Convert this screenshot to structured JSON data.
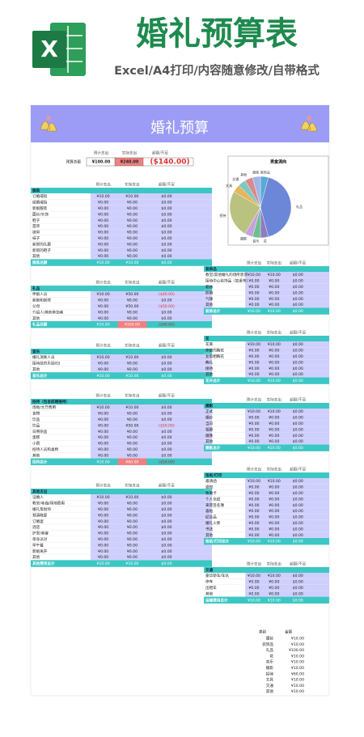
{
  "header": {
    "title": "婚礼预算表",
    "subtitle": "Excel/A4打印/内容随意修改/自带格式",
    "logo": "X"
  },
  "banner": "婚礼预算",
  "columns": [
    "预计支出",
    "实际支出",
    "超额/不足"
  ],
  "budget": {
    "label": "预算总额",
    "values": [
      "¥100.00",
      "¥240.00",
      "($140.00)"
    ]
  },
  "chart": {
    "title": "资金流向",
    "categories": [
      "装饰品",
      "礼品",
      "花",
      "音乐",
      "摄影",
      "招待",
      "文具",
      "交通",
      "其他",
      "服装"
    ],
    "values": [
      10,
      100,
      10,
      10,
      10,
      60,
      10,
      10,
      10,
      10
    ],
    "colors": [
      "#5aa9d6",
      "#6c86d8",
      "#8e7cc3",
      "#6fbf8e",
      "#c9a0dc",
      "#b9c27e",
      "#e6b55c",
      "#7fc8c0",
      "#d98b8b",
      "#9fb6e8"
    ]
  },
  "tables": [
    {
      "title": "服装",
      "rows": [
        [
          "订婚戒指",
          "¥10.00",
          "¥10.00",
          "$0.00"
        ],
        [
          "结婚戒指",
          "¥0.00",
          "¥0.00",
          "$0.00"
        ],
        [
          "新娘服装",
          "¥0.00",
          "¥0.00",
          "$0.00"
        ],
        [
          "面纱/头饰",
          "¥0.00",
          "¥0.00",
          "$0.00"
        ],
        [
          "鞋子",
          "¥0.00",
          "¥0.00",
          "$0.00"
        ],
        [
          "首饰",
          "¥0.00",
          "¥0.00",
          "$0.00"
        ],
        [
          "袜带",
          "¥0.00",
          "¥0.00",
          "$0.00"
        ],
        [
          "袜子",
          "¥0.00",
          "¥0.00",
          "$0.00"
        ],
        [
          "新郎的礼服",
          "¥0.00",
          "¥0.00",
          "$0.00"
        ],
        [
          "新郎的鞋子",
          "¥0.00",
          "¥0.00",
          "$0.00"
        ],
        [
          "其他",
          "¥0.00",
          "¥0.00",
          "$0.00"
        ]
      ],
      "total": [
        "服装总额",
        "¥10.00",
        "¥10.00",
        "$0.00"
      ]
    },
    {
      "title": "礼品",
      "rows": [
        [
          "伴娘人员",
          "¥10.00",
          "¥50.00",
          "($40.00)"
        ],
        [
          "新娘和新郎",
          "¥0.00",
          "¥0.00",
          "$0.00"
        ],
        [
          "父母",
          "¥0.00",
          "¥50.00",
          "($50.00)"
        ],
        [
          "介绍人/其他参加者",
          "¥0.00",
          "¥0.00",
          "$0.00"
        ],
        [
          "其他",
          "¥0.00",
          "¥0.00",
          "$0.00"
        ]
      ],
      "total": [
        "礼品总额",
        "¥10.00",
        "¥100.00",
        "($90.00)"
      ]
    },
    {
      "title": "音乐",
      "rows": [
        [
          "婚礼演奏人员",
          "¥10.00",
          "¥10.00",
          "$0.00"
        ],
        [
          "接待处的乐团/DJ",
          "¥0.00",
          "¥0.00",
          "$0.00"
        ],
        [
          "其他",
          "¥0.00",
          "¥0.00",
          "$0.00"
        ]
      ],
      "total": [
        "音乐总计",
        "¥10.00",
        "¥10.00",
        "$0.00"
      ]
    },
    {
      "title": "招待（包含前期接待）",
      "rows": [
        [
          "场地/大厅费用",
          "¥10.00",
          "¥10.00",
          "$0.00"
        ],
        [
          "食物",
          "¥0.00",
          "¥0.00",
          "$0.00"
        ],
        [
          "饮品",
          "¥0.00",
          "¥0.00",
          "$0.00"
        ],
        [
          "饮品",
          "¥0.00",
          "¥50.00",
          "($50.00)"
        ],
        [
          "日用杂品",
          "¥0.00",
          "¥0.00",
          "$0.00"
        ],
        [
          "蛋糕",
          "¥0.00",
          "¥0.00",
          "$0.00"
        ],
        [
          "小费",
          "¥0.00",
          "¥0.00",
          "$0.00"
        ],
        [
          "招待人员和桌椅",
          "¥0.00",
          "¥0.00",
          "$0.00"
        ],
        [
          "其他",
          "¥0.00",
          "¥0.00",
          "$0.00"
        ]
      ],
      "total": [
        "招待总计",
        "¥10.00",
        "¥60.00",
        "($50.00)"
      ]
    },
    {
      "title": "其他支出",
      "rows": [
        [
          "证婚人",
          "¥10.00",
          "¥10.00",
          "$0.00"
        ],
        [
          "教堂/寺庙/场地费用",
          "¥0.00",
          "¥0.00",
          "$0.00"
        ],
        [
          "婚礼策划师",
          "¥0.00",
          "¥0.00",
          "$0.00"
        ],
        [
          "预演晚宴",
          "¥0.00",
          "¥0.00",
          "$0.00"
        ],
        [
          "订婚宴",
          "¥0.00",
          "¥0.00",
          "$0.00"
        ],
        [
          "酒店",
          "¥0.00",
          "¥0.00",
          "$0.00"
        ],
        [
          "护发/美容",
          "¥0.00",
          "¥0.00",
          "$0.00"
        ],
        [
          "单身派对",
          "¥0.00",
          "¥0.00",
          "$0.00"
        ],
        [
          "早午餐",
          "¥0.00",
          "¥0.00",
          "$0.00"
        ],
        [
          "新娘离开",
          "¥0.00",
          "¥0.00",
          "$0.00"
        ],
        [
          "其他",
          "¥0.00",
          "¥0.00",
          "$0.00"
        ]
      ],
      "total": [
        "其他费用总计",
        "¥10.00",
        "¥10.00",
        "$0.00"
      ]
    },
    {
      "title": "装饰品",
      "rows": [
        [
          "教堂/其他婚礼的场所装饰",
          "¥10.00",
          "¥10.00",
          "$0.00"
        ],
        [
          "接待中心装饰品（如桌布）",
          "¥0.00",
          "¥0.00",
          "$0.00"
        ],
        [
          "蜡烛",
          "¥0.00",
          "¥0.00",
          "$0.00"
        ],
        [
          "照明",
          "¥0.00",
          "¥0.00",
          "$0.00"
        ],
        [
          "气球",
          "¥0.00",
          "¥0.00",
          "$0.00"
        ],
        [
          "其他",
          "¥0.00",
          "¥0.00",
          "$0.00"
        ]
      ],
      "total": [
        "装饰总计",
        "¥10.00",
        "¥10.00",
        "$0.00"
      ]
    },
    {
      "title": "花",
      "rows": [
        [
          "花束",
          "¥10.00",
          "¥10.00",
          "$0.00"
        ],
        [
          "伴娘的胸花",
          "¥0.00",
          "¥0.00",
          "$0.00"
        ],
        [
          "女傧相胸花",
          "¥0.00",
          "¥0.00",
          "$0.00"
        ],
        [
          "典礼",
          "¥0.00",
          "¥0.00",
          "$0.00"
        ],
        [
          "接待",
          "¥0.00",
          "¥0.00",
          "$0.00"
        ],
        [
          "其他",
          "¥0.00",
          "¥0.00",
          "$0.00"
        ]
      ],
      "total": [
        "花卉总计",
        "¥10.00",
        "¥10.00",
        "$0.00"
      ]
    },
    {
      "title": "摄影",
      "rows": [
        [
          "正式",
          "¥10.00",
          "¥10.00",
          "$0.00"
        ],
        [
          "婚纱",
          "¥0.00",
          "¥0.00",
          "$0.00"
        ],
        [
          "当日",
          "¥0.00",
          "¥0.00",
          "$0.00"
        ],
        [
          "相册",
          "¥0.00",
          "¥0.00",
          "$0.00"
        ],
        [
          "摄像",
          "¥0.00",
          "¥0.00",
          "$0.00"
        ],
        [
          "其他",
          "¥0.00",
          "¥0.00",
          "$0.00"
        ]
      ],
      "total": [
        "摄影总计",
        "¥10.00",
        "¥10.00",
        "$0.00"
      ]
    },
    {
      "title": "信纸/打印",
      "rows": [
        [
          "邀请函",
          "¥10.00",
          "¥10.00",
          "$0.00"
        ],
        [
          "通知",
          "¥0.00",
          "¥0.00",
          "$0.00"
        ],
        [
          "致谢卡",
          "¥0.00",
          "¥0.00",
          "$0.00"
        ],
        [
          "个人信纸",
          "¥0.00",
          "¥0.00",
          "$0.00"
        ],
        [
          "来宾签名簿",
          "¥0.00",
          "¥0.00",
          "$0.00"
        ],
        [
          "喜帖",
          "¥0.00",
          "¥0.00",
          "$0.00"
        ],
        [
          "纪念品",
          "¥0.00",
          "¥0.00",
          "$0.00"
        ],
        [
          "婚礼火柴",
          "¥0.00",
          "¥0.00",
          "$0.00"
        ],
        [
          "书法",
          "¥0.00",
          "¥0.00",
          "$0.00"
        ],
        [
          "其他",
          "¥0.00",
          "¥0.00",
          "$0.00"
        ]
      ],
      "total": [
        "信纸/打印总计",
        "¥10.00",
        "¥10.00",
        "$0.00"
      ]
    },
    {
      "title": "交通",
      "rows": [
        [
          "豪华轿车/车队",
          "¥10.00",
          "¥10.00",
          "$0.00"
        ],
        [
          "停车",
          "¥0.00",
          "¥0.00",
          "$0.00"
        ],
        [
          "出租车",
          "¥0.00",
          "¥0.00",
          "$0.00"
        ],
        [
          "其他",
          "¥0.00",
          "¥0.00",
          "$0.00"
        ]
      ],
      "total": [
        "运输费用总计",
        "¥10.00",
        "¥10.00",
        "$0.00"
      ]
    }
  ],
  "summary": {
    "headers": [
      "类别",
      "金额"
    ],
    "rows": [
      [
        "服装",
        "¥10.00"
      ],
      [
        "装饰品",
        "¥10.00"
      ],
      [
        "礼品",
        "¥100.00"
      ],
      [
        "花",
        "¥10.00"
      ],
      [
        "音乐",
        "¥10.00"
      ],
      [
        "摄影",
        "¥10.00"
      ],
      [
        "招待",
        "¥60.00"
      ],
      [
        "文具",
        "¥10.00"
      ],
      [
        "交通",
        "¥10.00"
      ],
      [
        "其他",
        "¥10.00"
      ]
    ]
  }
}
